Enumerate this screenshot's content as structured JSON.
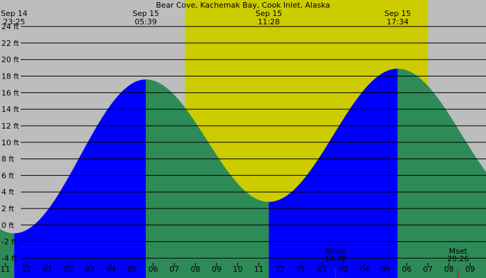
{
  "chart_data": {
    "type": "area",
    "title": "Bear Cove, Kachemak Bay, Cook Inlet, Alaska",
    "xlabel": "",
    "ylabel": "",
    "unit": "ft",
    "colors": {
      "background": "#bdbdbd",
      "daylight": "#cccc00",
      "rising": "#0000ff",
      "falling": "#2e8b57",
      "grid": "#000000",
      "moon_marker": "#cc0000"
    },
    "x_axis": {
      "start_hour": 10.75,
      "end_hour": 33.75,
      "tick_labels": [
        "11",
        "12",
        "01",
        "02",
        "03",
        "04",
        "05",
        "06",
        "07",
        "08",
        "09",
        "10",
        "11",
        "12",
        "01",
        "02",
        "03",
        "04",
        "05",
        "06",
        "07",
        "08",
        "09"
      ]
    },
    "y_axis": {
      "ylim": [
        -6.4,
        27.2
      ],
      "ticks": [
        -4,
        -2,
        0,
        2,
        4,
        6,
        8,
        10,
        12,
        14,
        16,
        18,
        20,
        22,
        24
      ]
    },
    "daylight": {
      "start_hour": 19.5,
      "end_hour": 31.0
    },
    "extremes": [
      {
        "date": "Sep 14",
        "time": "23:25",
        "hour": 11.42,
        "height": -1.0,
        "kind": "low"
      },
      {
        "date": "Sep 15",
        "time": "05:39",
        "hour": 17.65,
        "height": 17.6,
        "kind": "high"
      },
      {
        "date": "Sep 15",
        "time": "11:28",
        "hour": 23.47,
        "height": 2.8,
        "kind": "low"
      },
      {
        "date": "Sep 15",
        "time": "17:34",
        "hour": 29.57,
        "height": 18.9,
        "kind": "high"
      }
    ],
    "boundary_levels": [
      {
        "hour": 10.75,
        "height": -0.3
      },
      {
        "hour": 33.75,
        "height": 6.8
      }
    ],
    "moon": {
      "rise": {
        "label": "Mrise",
        "time": "14:38",
        "hour": 26.63
      },
      "set": {
        "label": "Mset",
        "time": "20:26",
        "hour": 32.43
      }
    }
  }
}
